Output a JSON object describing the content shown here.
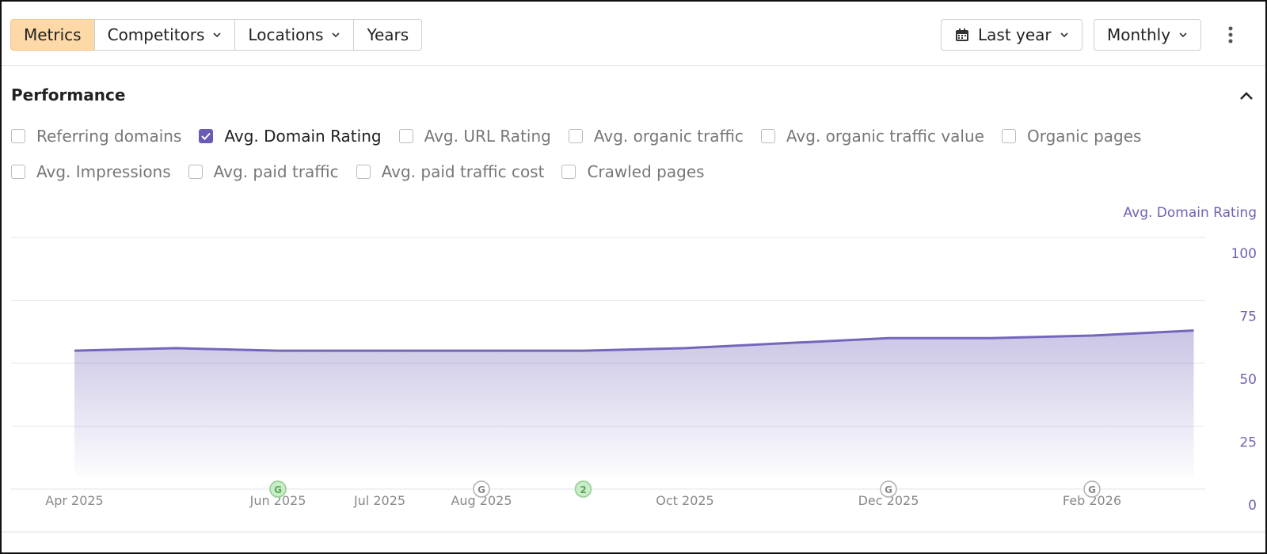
{
  "toolbar": {
    "tabs": [
      "Metrics",
      "Competitors",
      "Locations",
      "Years"
    ],
    "period": "Last year",
    "interval": "Monthly"
  },
  "section": {
    "title": "Performance"
  },
  "metric_rows": [
    [
      {
        "label": "Referring domains",
        "checked": false
      },
      {
        "label": "Avg. Domain Rating",
        "checked": true
      },
      {
        "label": "Avg. URL Rating",
        "checked": false
      },
      {
        "label": "Avg. organic traffic",
        "checked": false
      },
      {
        "label": "Avg. organic traffic value",
        "checked": false
      },
      {
        "label": "Organic pages",
        "checked": false
      }
    ],
    [
      {
        "label": "Avg. Impressions",
        "checked": false
      },
      {
        "label": "Avg. paid traffic",
        "checked": false
      },
      {
        "label": "Avg. paid traffic cost",
        "checked": false
      },
      {
        "label": "Crawled pages",
        "checked": false
      }
    ]
  ],
  "chart_data": {
    "type": "area",
    "ylabel": "Avg. Domain Rating",
    "categories": [
      "Apr 2025",
      null,
      "Jun 2025",
      "Jul 2025",
      "Aug 2025",
      null,
      "Oct 2025",
      null,
      "Dec 2025",
      null,
      "Feb 2026",
      null
    ],
    "series": [
      {
        "color": "#7467bb",
        "values": [
          55,
          56,
          55,
          55,
          55,
          55,
          56,
          58,
          60,
          60,
          61,
          63
        ]
      }
    ],
    "ylim": [
      0,
      100
    ],
    "yticks": [
      0,
      25,
      50,
      75,
      100
    ],
    "grid": true,
    "annotations": [
      {
        "label": "G",
        "color": "#8fcf8f"
      },
      {
        "label": "G",
        "color": "#b0b0b0"
      },
      {
        "label": "2",
        "color": "#8fcf8f"
      },
      {
        "label": "G",
        "color": "#b0b0b0"
      },
      {
        "label": "G",
        "color": "#b0b0b0"
      }
    ]
  }
}
